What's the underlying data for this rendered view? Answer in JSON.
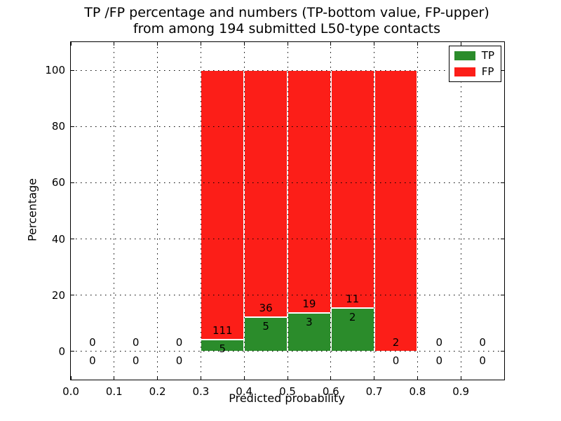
{
  "chart_data": {
    "type": "bar",
    "stacked": true,
    "title": "TP /FP percentage and numbers (TP-bottom value, FP-upper) from among 194 submitted L50-type contacts",
    "title_lines": [
      "TP /FP percentage and numbers (TP-bottom value, FP-upper)",
      "from among 194 submitted L50-type contacts"
    ],
    "xlabel": "Predicted probability",
    "ylabel": "Percentage",
    "xlim": [
      0.0,
      1.0
    ],
    "ylim": [
      -10,
      110
    ],
    "xticks": [
      "0.0",
      "0.1",
      "0.2",
      "0.3",
      "0.4",
      "0.5",
      "0.6",
      "0.7",
      "0.8",
      "0.9"
    ],
    "yticks": [
      "0",
      "20",
      "40",
      "60",
      "80",
      "100"
    ],
    "grid": "dotted-black-both-axes",
    "legend_position": "upper right",
    "total_contacts": 194,
    "bar_bin_width": 0.1,
    "bins": [
      {
        "range": [
          0.0,
          0.1
        ],
        "tp": 0,
        "fp": 0
      },
      {
        "range": [
          0.1,
          0.2
        ],
        "tp": 0,
        "fp": 0
      },
      {
        "range": [
          0.2,
          0.3
        ],
        "tp": 0,
        "fp": 0
      },
      {
        "range": [
          0.3,
          0.4
        ],
        "tp": 5,
        "fp": 111
      },
      {
        "range": [
          0.4,
          0.5
        ],
        "tp": 5,
        "fp": 36
      },
      {
        "range": [
          0.5,
          0.6
        ],
        "tp": 3,
        "fp": 19
      },
      {
        "range": [
          0.6,
          0.7
        ],
        "tp": 2,
        "fp": 11
      },
      {
        "range": [
          0.7,
          0.8
        ],
        "tp": 0,
        "fp": 2
      },
      {
        "range": [
          0.8,
          0.9
        ],
        "tp": 0,
        "fp": 0
      },
      {
        "range": [
          0.9,
          1.0
        ],
        "tp": 0,
        "fp": 0
      }
    ],
    "series": [
      {
        "name": "TP",
        "color": "#2b8c2b"
      },
      {
        "name": "FP",
        "color": "#fc1e18"
      }
    ]
  }
}
